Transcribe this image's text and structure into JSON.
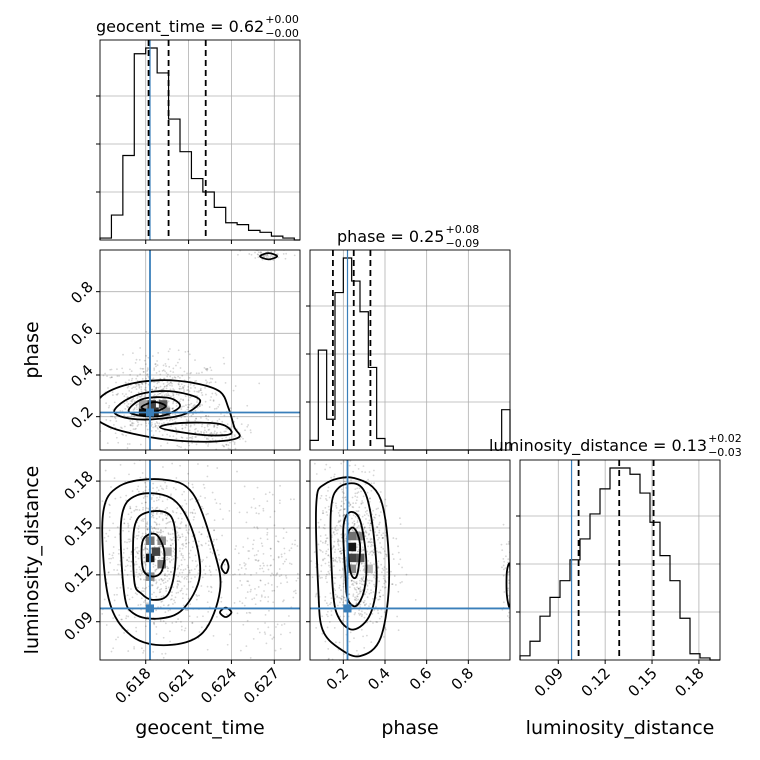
{
  "chart_data": {
    "type": "corner",
    "parameters": [
      "geocent_time",
      "phase",
      "luminosity_distance"
    ],
    "truths": {
      "geocent_time": 0.6183,
      "phase": 0.22,
      "luminosity_distance": 0.0985
    },
    "colors": {
      "histogram": "#000000",
      "truth": "#3a7fba",
      "quantile": "#000000",
      "grid": "#b0b0b0"
    },
    "grid": true,
    "titles": [
      {
        "param": "geocent_time",
        "label": "geocent_time = 0.62",
        "upper": "+0.00",
        "lower": "−0.00"
      },
      {
        "param": "phase",
        "label": "phase = 0.25",
        "upper": "+0.08",
        "lower": "−0.09"
      },
      {
        "param": "luminosity_distance",
        "label": "luminosity_distance = 0.13",
        "upper": "+0.02",
        "lower": "−0.03"
      }
    ],
    "axis_labels": {
      "x": [
        "geocent_time",
        "phase",
        "luminosity_distance"
      ],
      "y": [
        "phase",
        "luminosity_distance"
      ]
    },
    "ranges": {
      "geocent_time": [
        0.6148,
        0.6288
      ],
      "phase": [
        0.04,
        1.0
      ],
      "luminosity_distance": [
        0.0655,
        0.1935
      ]
    },
    "tick_labels": {
      "geocent_time": {
        "values": [
          0.618,
          0.621,
          0.624,
          0.627
        ],
        "labels": [
          "0.618",
          "0.621",
          "0.624",
          "0.627"
        ]
      },
      "phase_x": {
        "values": [
          0.2,
          0.4,
          0.6,
          0.8
        ],
        "labels": [
          "0.2",
          "0.4",
          "0.6",
          "0.8"
        ]
      },
      "phase_y": {
        "values": [
          0.2,
          0.4,
          0.6,
          0.8
        ],
        "labels": [
          "0.2",
          "0.4",
          "0.6",
          "0.8"
        ]
      },
      "luminosity_distance": {
        "values": [
          0.09,
          0.12,
          0.15,
          0.18
        ],
        "labels": [
          "0.09",
          "0.12",
          "0.15",
          "0.18"
        ]
      }
    },
    "quantiles": {
      "geocent_time": [
        0.6182,
        0.6196,
        0.6222
      ],
      "phase": [
        0.15,
        0.25,
        0.33
      ],
      "luminosity_distance": [
        0.103,
        0.129,
        0.151
      ]
    },
    "histograms": {
      "geocent_time": {
        "edges": [
          0.6148,
          0.6156,
          0.6164,
          0.6172,
          0.618,
          0.6188,
          0.6196,
          0.6204,
          0.6212,
          0.622,
          0.6228,
          0.6236,
          0.6244,
          0.6252,
          0.626,
          0.6268,
          0.6276,
          0.6284,
          0.6288
        ],
        "counts": [
          0.01,
          0.13,
          0.44,
          0.97,
          1.0,
          0.87,
          0.63,
          0.46,
          0.32,
          0.25,
          0.17,
          0.09,
          0.08,
          0.05,
          0.04,
          0.02,
          0.01,
          0.0
        ]
      },
      "phase": {
        "edges": [
          0.04,
          0.08,
          0.12,
          0.16,
          0.2,
          0.24,
          0.28,
          0.32,
          0.36,
          0.4,
          0.44,
          0.48,
          0.52,
          0.56,
          0.6,
          0.64,
          0.68,
          0.72,
          0.76,
          0.8,
          0.84,
          0.88,
          0.92,
          0.96,
          1.0
        ],
        "counts": [
          0.05,
          0.52,
          0.16,
          0.82,
          1.0,
          0.88,
          0.72,
          0.43,
          0.06,
          0.02,
          0.0,
          0.0,
          0.0,
          0.0,
          0.0,
          0.0,
          0.0,
          0.0,
          0.0,
          0.0,
          0.0,
          0.0,
          0.0,
          0.21
        ]
      },
      "luminosity_distance": {
        "edges": [
          0.0655,
          0.0719,
          0.0783,
          0.0847,
          0.0911,
          0.0975,
          0.1039,
          0.1103,
          0.1167,
          0.1231,
          0.1295,
          0.1359,
          0.1423,
          0.1487,
          0.1551,
          0.1615,
          0.1679,
          0.1743,
          0.1807,
          0.1871,
          0.1935
        ],
        "counts": [
          0.02,
          0.09,
          0.21,
          0.3,
          0.38,
          0.48,
          0.58,
          0.7,
          0.82,
          0.92,
          0.92,
          0.89,
          0.8,
          0.66,
          0.5,
          0.38,
          0.2,
          0.03,
          0.01,
          0.0
        ]
      }
    },
    "density_cells": {
      "geocent_time_vs_phase": [
        [
          0.6178,
          0.225,
          1.0
        ],
        [
          0.6186,
          0.225,
          0.9
        ],
        [
          0.6184,
          0.26,
          0.8
        ],
        [
          0.6192,
          0.26,
          0.7
        ],
        [
          0.6194,
          0.225,
          0.5
        ],
        [
          0.6178,
          0.26,
          0.4
        ]
      ],
      "geocent_time_vs_luminosity_distance": [
        [
          0.6183,
          0.131,
          1.0
        ],
        [
          0.6187,
          0.135,
          0.8
        ],
        [
          0.6191,
          0.127,
          0.6
        ],
        [
          0.6183,
          0.142,
          0.6
        ],
        [
          0.6191,
          0.142,
          0.5
        ],
        [
          0.6183,
          0.119,
          0.5
        ],
        [
          0.6195,
          0.135,
          0.4
        ]
      ],
      "phase_vs_luminosity_distance": [
        [
          0.24,
          0.138,
          1.0
        ],
        [
          0.24,
          0.131,
          0.8
        ],
        [
          0.28,
          0.131,
          0.7
        ],
        [
          0.24,
          0.145,
          0.6
        ],
        [
          0.28,
          0.145,
          0.5
        ],
        [
          0.24,
          0.124,
          0.5
        ],
        [
          0.32,
          0.124,
          0.3
        ]
      ]
    },
    "contours": {
      "geocent_time_vs_phase": [
        [
          [
            0.6158,
            0.22
          ],
          [
            0.6165,
            0.275
          ],
          [
            0.618,
            0.315
          ],
          [
            0.62,
            0.32
          ],
          [
            0.6218,
            0.28
          ],
          [
            0.6208,
            0.215
          ],
          [
            0.619,
            0.19
          ],
          [
            0.617,
            0.19
          ]
        ],
        [
          [
            0.6168,
            0.23
          ],
          [
            0.6178,
            0.285
          ],
          [
            0.6196,
            0.29
          ],
          [
            0.6204,
            0.25
          ],
          [
            0.6192,
            0.205
          ],
          [
            0.6176,
            0.205
          ]
        ],
        [
          [
            0.6177,
            0.245
          ],
          [
            0.6186,
            0.27
          ],
          [
            0.6194,
            0.25
          ],
          [
            0.6186,
            0.225
          ]
        ],
        [
          [
            0.619,
            0.15
          ],
          [
            0.6205,
            0.17
          ],
          [
            0.6232,
            0.165
          ],
          [
            0.624,
            0.12
          ],
          [
            0.6226,
            0.11
          ],
          [
            0.6205,
            0.125
          ]
        ],
        [
          [
            0.6145,
            0.2
          ],
          [
            0.6148,
            0.29
          ],
          [
            0.6165,
            0.35
          ],
          [
            0.619,
            0.375
          ],
          [
            0.6215,
            0.36
          ],
          [
            0.6232,
            0.32
          ],
          [
            0.6238,
            0.24
          ],
          [
            0.6242,
            0.15
          ],
          [
            0.6245,
            0.1
          ],
          [
            0.6225,
            0.08
          ],
          [
            0.6195,
            0.09
          ],
          [
            0.617,
            0.12
          ],
          [
            0.6155,
            0.15
          ]
        ],
        [
          [
            0.626,
            0.97
          ],
          [
            0.6266,
            0.985
          ],
          [
            0.6272,
            0.97
          ],
          [
            0.6266,
            0.955
          ]
        ]
      ],
      "geocent_time_vs_luminosity_distance": [
        [
          [
            0.6172,
            0.116
          ],
          [
            0.6172,
            0.15
          ],
          [
            0.6181,
            0.16
          ],
          [
            0.6198,
            0.157
          ],
          [
            0.6201,
            0.13
          ],
          [
            0.6196,
            0.108
          ],
          [
            0.6185,
            0.104
          ],
          [
            0.6177,
            0.108
          ]
        ],
        [
          [
            0.6178,
            0.124
          ],
          [
            0.6178,
            0.142
          ],
          [
            0.6187,
            0.146
          ],
          [
            0.6193,
            0.135
          ],
          [
            0.6191,
            0.122
          ],
          [
            0.6184,
            0.119
          ]
        ],
        [
          [
            0.6165,
            0.108
          ],
          [
            0.6163,
            0.156
          ],
          [
            0.6174,
            0.171
          ],
          [
            0.6198,
            0.169
          ],
          [
            0.6212,
            0.15
          ],
          [
            0.6218,
            0.12
          ],
          [
            0.6206,
            0.098
          ],
          [
            0.6189,
            0.092
          ],
          [
            0.6172,
            0.095
          ]
        ],
        [
          [
            0.6154,
            0.105
          ],
          [
            0.615,
            0.158
          ],
          [
            0.6162,
            0.177
          ],
          [
            0.6192,
            0.181
          ],
          [
            0.6213,
            0.172
          ],
          [
            0.6228,
            0.135
          ],
          [
            0.6232,
            0.11
          ],
          [
            0.622,
            0.083
          ],
          [
            0.6195,
            0.075
          ],
          [
            0.617,
            0.081
          ]
        ],
        [
          [
            0.6233,
            0.125
          ],
          [
            0.6236,
            0.13
          ],
          [
            0.6238,
            0.125
          ],
          [
            0.6236,
            0.121
          ]
        ],
        [
          [
            0.6232,
            0.096
          ],
          [
            0.6236,
            0.099
          ],
          [
            0.624,
            0.096
          ],
          [
            0.6236,
            0.093
          ]
        ]
      ],
      "phase_vs_luminosity_distance": [
        [
          [
            0.21,
            0.12
          ],
          [
            0.2,
            0.15
          ],
          [
            0.23,
            0.16
          ],
          [
            0.28,
            0.155
          ],
          [
            0.31,
            0.13
          ],
          [
            0.3,
            0.11
          ],
          [
            0.26,
            0.1
          ],
          [
            0.22,
            0.105
          ]
        ],
        [
          [
            0.23,
            0.125
          ],
          [
            0.22,
            0.145
          ],
          [
            0.25,
            0.15
          ],
          [
            0.28,
            0.14
          ],
          [
            0.27,
            0.122
          ],
          [
            0.25,
            0.118
          ]
        ],
        [
          [
            0.15,
            0.11
          ],
          [
            0.14,
            0.16
          ],
          [
            0.18,
            0.176
          ],
          [
            0.28,
            0.177
          ],
          [
            0.33,
            0.16
          ],
          [
            0.36,
            0.12
          ],
          [
            0.33,
            0.095
          ],
          [
            0.25,
            0.085
          ],
          [
            0.18,
            0.092
          ]
        ],
        [
          [
            0.08,
            0.11
          ],
          [
            0.07,
            0.165
          ],
          [
            0.11,
            0.178
          ],
          [
            0.25,
            0.182
          ],
          [
            0.38,
            0.168
          ],
          [
            0.42,
            0.12
          ],
          [
            0.38,
            0.08
          ],
          [
            0.28,
            0.068
          ],
          [
            0.18,
            0.073
          ],
          [
            0.1,
            0.085
          ]
        ],
        [
          [
            1.0,
            0.1
          ],
          [
            0.985,
            0.107
          ],
          [
            0.985,
            0.122
          ],
          [
            1.0,
            0.126
          ]
        ]
      ]
    },
    "scatter_clouds": {
      "geocent_time_vs_phase": [
        [
          0.619,
          0.28,
          0.0022,
          0.1,
          700
        ],
        [
          0.6225,
          0.12,
          0.0012,
          0.04,
          160
        ],
        [
          0.6267,
          0.975,
          0.001,
          0.015,
          50
        ]
      ],
      "geocent_time_vs_luminosity_distance": [
        [
          0.619,
          0.132,
          0.002,
          0.028,
          900
        ],
        [
          0.6265,
          0.125,
          0.0015,
          0.028,
          220
        ]
      ],
      "phase_vs_luminosity_distance": [
        [
          0.25,
          0.132,
          0.09,
          0.028,
          900
        ],
        [
          0.985,
          0.12,
          0.015,
          0.015,
          40
        ]
      ]
    }
  }
}
